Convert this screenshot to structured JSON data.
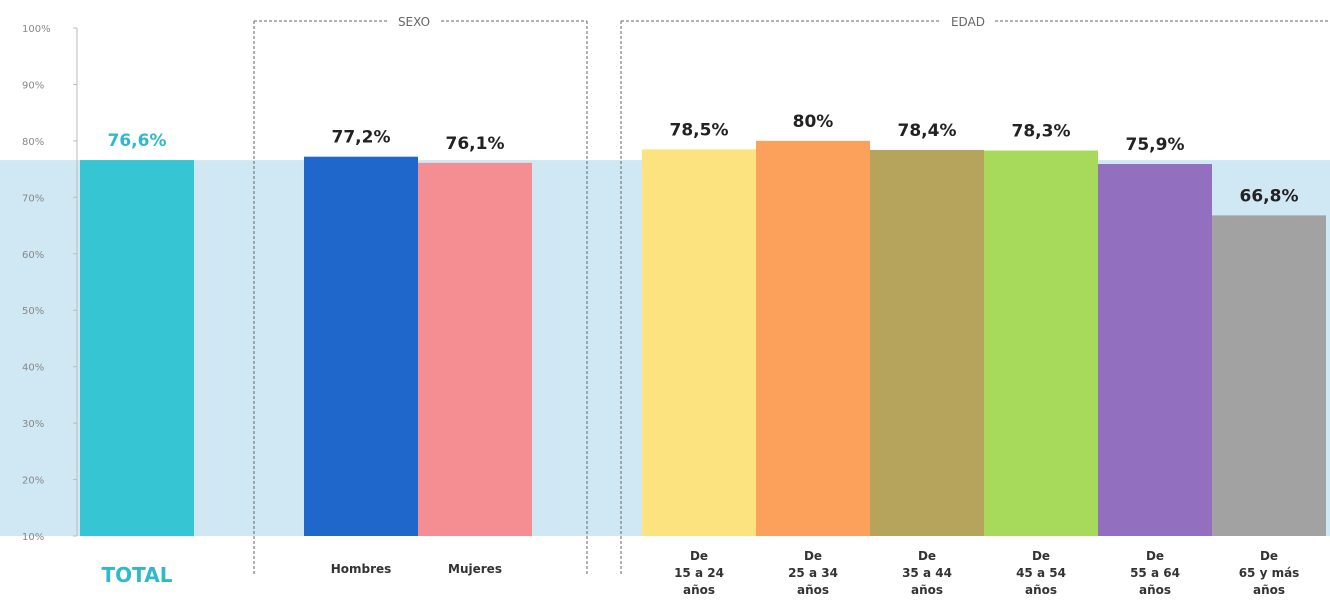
{
  "chart_data": {
    "type": "bar",
    "ylim": [
      10,
      100
    ],
    "y_ticks": [
      "100%",
      "90%",
      "80%",
      "70%",
      "60%",
      "50%",
      "40%",
      "30%",
      "20%",
      "10%"
    ],
    "reference_band_value": 76.6,
    "groups": [
      {
        "label": "",
        "members": [
          "TOTAL"
        ]
      },
      {
        "label": "SEXO",
        "members": [
          "Hombres",
          "Mujeres"
        ]
      },
      {
        "label": "EDAD",
        "members": [
          "De 15 a 24 años",
          "De 25 a 34 años",
          "De 35 a 44 años",
          "De 45 a 54 años",
          "De 55 a 64 años",
          "De 65 y más años"
        ]
      }
    ],
    "bars": [
      {
        "category": "TOTAL",
        "category_lines": [
          "TOTAL"
        ],
        "value": 76.6,
        "label": "76,6%",
        "color": "#36c5d3"
      },
      {
        "category": "Hombres",
        "category_lines": [
          "Hombres"
        ],
        "value": 77.2,
        "label": "77,2%",
        "color": "#1f67cb"
      },
      {
        "category": "Mujeres",
        "category_lines": [
          "Mujeres"
        ],
        "value": 76.1,
        "label": "76,1%",
        "color": "#f58e92"
      },
      {
        "category": "De 15 a 24 años",
        "category_lines": [
          "De",
          "15 a 24",
          "años"
        ],
        "value": 78.5,
        "label": "78,5%",
        "color": "#fde37f"
      },
      {
        "category": "De 25 a 34 años",
        "category_lines": [
          "De",
          "25 a 34",
          "años"
        ],
        "value": 80,
        "label": "80%",
        "color": "#fba15b"
      },
      {
        "category": "De 35 a 44 años",
        "category_lines": [
          "De",
          "35 a 44",
          "años"
        ],
        "value": 78.4,
        "label": "78,4%",
        "color": "#b6a45c"
      },
      {
        "category": "De 45 a 54 años",
        "category_lines": [
          "De",
          "45 a 54",
          "años"
        ],
        "value": 78.3,
        "label": "78,3%",
        "color": "#a7d95a"
      },
      {
        "category": "De 55 a 64 años",
        "category_lines": [
          "De",
          "55 a 64",
          "años"
        ],
        "value": 75.9,
        "label": "75,9%",
        "color": "#936fbf"
      },
      {
        "category": "De 65 y más años",
        "category_lines": [
          "De",
          "65 y más",
          "años"
        ],
        "value": 66.8,
        "label": "66,8%",
        "color": "#a2a2a2"
      }
    ],
    "colors": {
      "band": "#cfe8f4",
      "axis": "#bbbbbb",
      "divider": "#666666"
    }
  }
}
